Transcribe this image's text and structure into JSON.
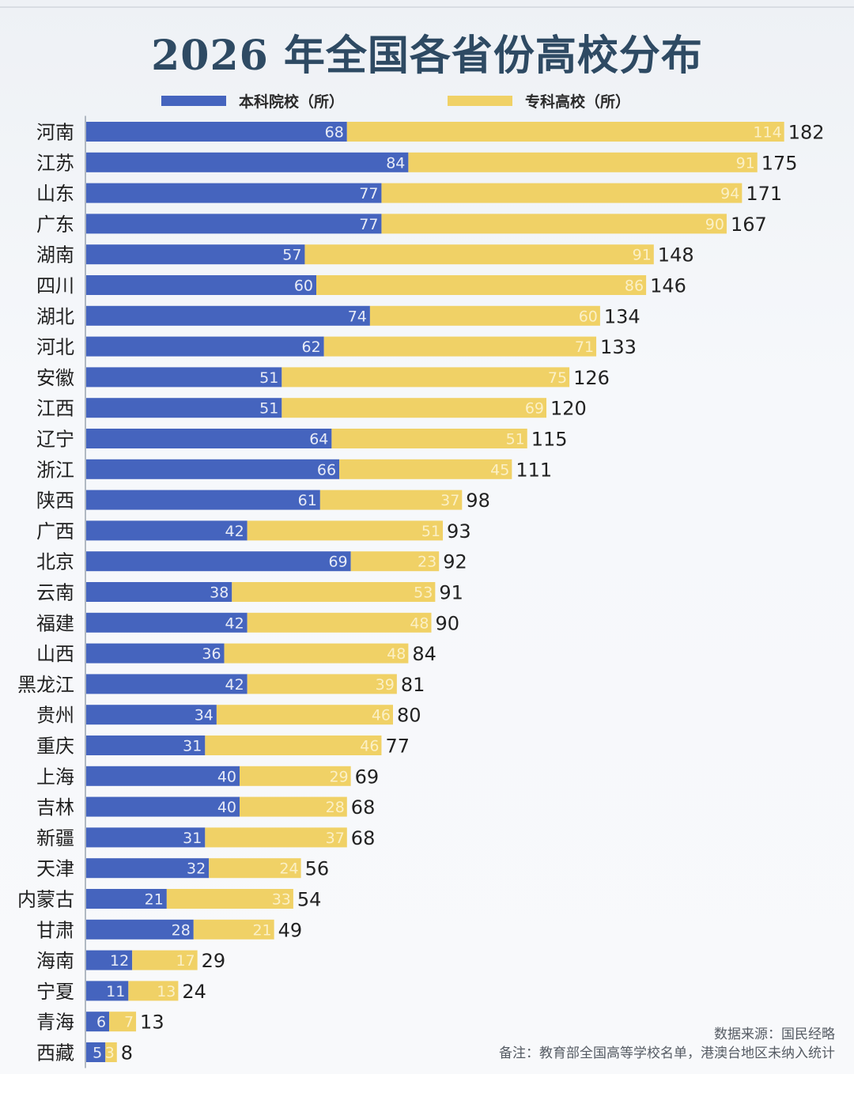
{
  "title": "2026 年全国各省份高校分布",
  "legend": {
    "undergrad": "本科院校（所）",
    "junior": "专科高校（所）"
  },
  "colors": {
    "undergrad": "#4564be",
    "junior": "#f0d166",
    "title": "#2e4a63",
    "axis": "#9aa4b0"
  },
  "notes": {
    "source": "数据来源：国民经略",
    "remark": "备注：教育部全国高等学校名单，港澳台地区未纳入统计"
  },
  "corner_icons": "",
  "chart_data": {
    "type": "bar",
    "orientation": "horizontal",
    "stacked": true,
    "title": "2026 年全国各省份高校分布",
    "xlim": [
      0,
      182
    ],
    "grid": false,
    "legend_position": "top",
    "categories": [
      "河南",
      "江苏",
      "山东",
      "广东",
      "湖南",
      "四川",
      "湖北",
      "河北",
      "安徽",
      "江西",
      "辽宁",
      "浙江",
      "陕西",
      "广西",
      "北京",
      "云南",
      "福建",
      "山西",
      "黑龙江",
      "贵州",
      "重庆",
      "上海",
      "吉林",
      "新疆",
      "天津",
      "内蒙古",
      "甘肃",
      "海南",
      "宁夏",
      "青海",
      "西藏"
    ],
    "series": [
      {
        "name": "本科院校（所）",
        "values": [
          68,
          84,
          77,
          77,
          57,
          60,
          74,
          62,
          51,
          51,
          64,
          66,
          61,
          42,
          69,
          38,
          42,
          36,
          42,
          34,
          31,
          40,
          40,
          31,
          32,
          21,
          28,
          12,
          11,
          6,
          5
        ]
      },
      {
        "name": "专科高校（所）",
        "values": [
          114,
          91,
          94,
          90,
          91,
          86,
          60,
          71,
          75,
          69,
          51,
          45,
          37,
          51,
          23,
          53,
          48,
          48,
          39,
          46,
          46,
          29,
          28,
          37,
          24,
          33,
          21,
          17,
          13,
          7,
          3
        ]
      }
    ],
    "totals": [
      182,
      175,
      171,
      167,
      148,
      146,
      134,
      133,
      126,
      120,
      115,
      111,
      98,
      93,
      92,
      91,
      90,
      84,
      81,
      80,
      77,
      69,
      68,
      68,
      56,
      54,
      49,
      29,
      24,
      13,
      8
    ]
  }
}
